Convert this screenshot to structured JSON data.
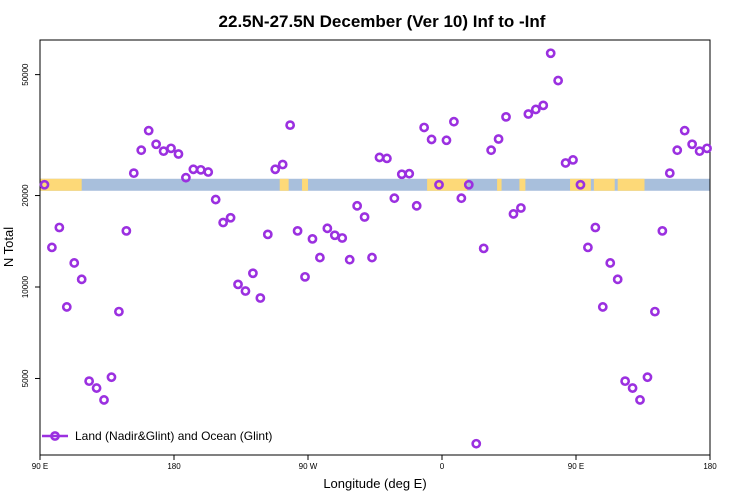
{
  "chart_data": {
    "type": "scatter",
    "title": "22.5N-27.5N December (Ver 10)   Inf to -Inf",
    "xlabel": "Longitude (deg E)",
    "ylabel": "N Total",
    "x_tick_labels": [
      "90 E",
      "180",
      "90 W",
      "0",
      "90 E",
      "180"
    ],
    "x_ticks": [
      90,
      180,
      270,
      360,
      450,
      540
    ],
    "xlim": [
      90,
      540
    ],
    "ylim": [
      2800,
      65000
    ],
    "y_scale": "log",
    "y_ticks": [
      5000,
      10000,
      20000,
      50000
    ],
    "y_tick_labels": [
      "5000",
      "10000",
      "20000",
      "50000"
    ],
    "grid": false,
    "legend": {
      "position": "bottom-left",
      "label": "Land (Nadir&Glint) and Ocean (Glint)"
    },
    "series": [
      {
        "name": "Land (Nadir&Glint) and Ocean (Glint)",
        "color": "#9b30e0",
        "marker": "open-circle",
        "x": [
          93,
          98,
          103,
          108,
          113,
          118,
          123,
          128,
          133,
          138,
          143,
          148,
          153,
          158,
          163,
          168,
          173,
          178,
          183,
          188,
          193,
          198,
          203,
          208,
          213,
          218,
          223,
          228,
          233,
          238,
          243,
          248,
          253,
          258,
          263,
          268,
          273,
          278,
          283,
          288,
          293,
          298,
          303,
          308,
          313,
          318,
          323,
          328,
          333,
          338,
          343,
          348,
          353,
          358,
          363,
          368,
          373,
          378,
          383,
          388,
          393,
          398,
          403,
          408,
          413,
          418,
          423,
          428,
          433,
          438,
          443,
          448,
          453,
          458,
          463,
          468,
          473,
          478,
          483,
          488,
          493,
          498,
          503,
          508,
          513,
          518,
          523,
          528,
          533,
          538
        ],
        "y": [
          21700,
          13500,
          15700,
          8600,
          12000,
          10600,
          4900,
          4650,
          4250,
          5050,
          8300,
          15300,
          23700,
          28200,
          32700,
          29500,
          28000,
          28600,
          27400,
          22900,
          24400,
          24300,
          23900,
          19400,
          16300,
          16900,
          10200,
          9700,
          11100,
          9200,
          14900,
          24400,
          25300,
          34100,
          15300,
          10800,
          14400,
          12500,
          15600,
          14800,
          14500,
          12300,
          18500,
          17000,
          12500,
          26700,
          26500,
          19600,
          23500,
          23600,
          18500,
          33500,
          30600,
          21700,
          30400,
          35000,
          19600,
          21700,
          3050,
          13400,
          28200,
          30700,
          36300,
          17400,
          18200,
          37100,
          38400,
          39600,
          58800,
          47800,
          25600,
          26200,
          21700,
          13500,
          15700,
          8600,
          12000,
          10600,
          4900,
          4650,
          4250,
          5050,
          8300,
          15300,
          23700,
          28200,
          32700,
          29500,
          28000,
          28600
        ]
      }
    ],
    "surface_band": {
      "value": 21700,
      "ocean_color": "#a8bfdc",
      "land_color": "#fdd978"
    }
  }
}
